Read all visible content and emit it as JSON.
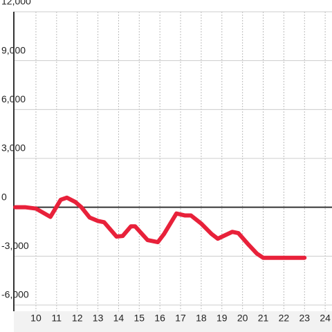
{
  "chart_data": {
    "type": "line",
    "x": [
      9,
      9.5,
      10,
      10.7,
      11.2,
      11.5,
      11.9,
      12.2,
      12.6,
      13,
      13.3,
      13.9,
      14.2,
      14.6,
      14.8,
      15.4,
      15.9,
      16.2,
      16.8,
      17.2,
      17.5,
      18,
      18.5,
      18.8,
      19.5,
      19.8,
      20.3,
      20.7,
      21,
      23
    ],
    "series": [
      {
        "color": "#e8213a",
        "values": [
          0,
          0,
          -80,
          -590,
          460,
          590,
          330,
          0,
          -630,
          -840,
          -920,
          -1800,
          -1760,
          -1170,
          -1170,
          -2010,
          -2140,
          -1640,
          -380,
          -500,
          -500,
          -1000,
          -1640,
          -1930,
          -1510,
          -1590,
          -2310,
          -2850,
          -3100,
          -3100
        ]
      }
    ],
    "xlim": [
      8.93,
      24.33
    ],
    "xticks": [
      10,
      11,
      12,
      13,
      14,
      15,
      16,
      17,
      18,
      19,
      20,
      21,
      22,
      23,
      24
    ],
    "ylim": [
      -6000,
      12000
    ],
    "yticks": [
      {
        "value": -6000,
        "label": "-6,000"
      },
      {
        "value": -3000,
        "label": "-3,000"
      },
      0,
      {
        "value": 3000,
        "label": "3,000"
      },
      {
        "value": 6000,
        "label": "6,000"
      },
      {
        "value": 9000,
        "label": "9,000"
      },
      {
        "value": 12000,
        "label": "12,000"
      }
    ],
    "grid": true
  }
}
